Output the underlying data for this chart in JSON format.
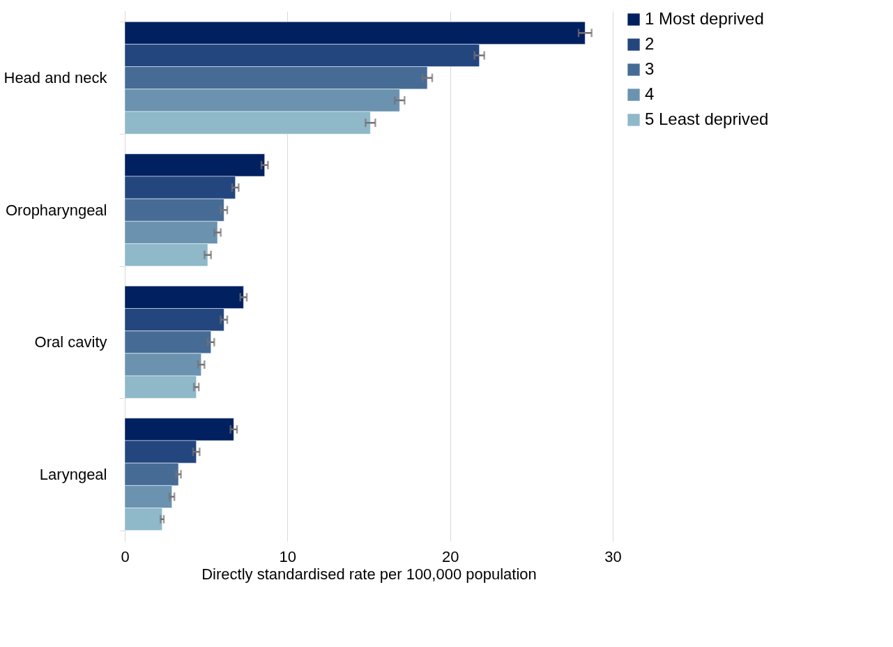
{
  "chart_data": {
    "type": "bar",
    "orientation": "horizontal",
    "xlabel": "Directly standardised rate per 100,000 population",
    "categories": [
      "Head and neck",
      "Oropharyngeal",
      "Oral cavity",
      "Laryngeal"
    ],
    "series": [
      {
        "name": "1 Most deprived",
        "color": "#00205f",
        "values": [
          28.3,
          8.6,
          7.3,
          6.7
        ],
        "errors": [
          0.4,
          0.2,
          0.2,
          0.2
        ]
      },
      {
        "name": "2",
        "color": "#24467f",
        "values": [
          21.8,
          6.8,
          6.1,
          4.4
        ],
        "errors": [
          0.3,
          0.2,
          0.2,
          0.2
        ]
      },
      {
        "name": "3",
        "color": "#466c96",
        "values": [
          18.6,
          6.1,
          5.3,
          3.3
        ],
        "errors": [
          0.3,
          0.2,
          0.2,
          0.15
        ]
      },
      {
        "name": "4",
        "color": "#6b93b0",
        "values": [
          16.9,
          5.7,
          4.7,
          2.9
        ],
        "errors": [
          0.3,
          0.2,
          0.2,
          0.15
        ]
      },
      {
        "name": "5 Least deprived",
        "color": "#8fb8c9",
        "values": [
          15.1,
          5.1,
          4.4,
          2.3
        ],
        "errors": [
          0.3,
          0.2,
          0.15,
          0.1
        ]
      }
    ],
    "xlim": [
      0,
      30
    ],
    "xticks": [
      0,
      10,
      20,
      30
    ],
    "grid": "x",
    "legend": "right"
  }
}
